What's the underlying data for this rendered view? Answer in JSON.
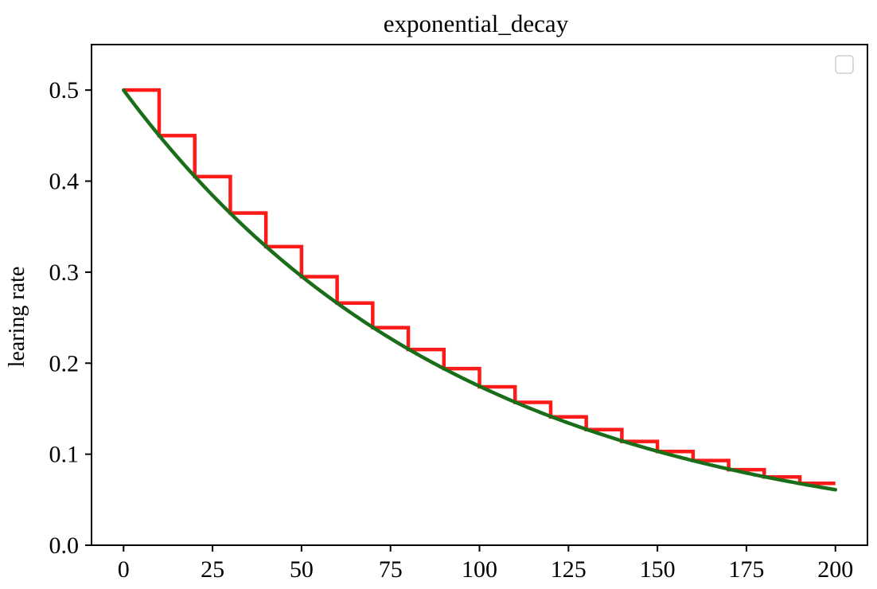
{
  "chart_data": {
    "type": "line",
    "title": "exponential_decay",
    "xlabel": "",
    "ylabel": "learing rate",
    "xlim": [
      -9,
      209
    ],
    "ylim": [
      0,
      0.5
    ],
    "x_ticks": [
      0,
      25,
      50,
      75,
      100,
      125,
      150,
      175,
      200
    ],
    "x_tick_labels": [
      "0",
      "25",
      "50",
      "75",
      "100",
      "125",
      "150",
      "175",
      "200"
    ],
    "y_ticks": [
      0,
      0.1,
      0.2,
      0.3,
      0.4,
      0.5
    ],
    "y_tick_labels": [
      "0.0",
      "0.1",
      "0.2",
      "0.3",
      "0.4",
      "0.5"
    ],
    "grid": false,
    "legend": {
      "placement": "top-right",
      "entries": []
    },
    "series": [
      {
        "style": "step",
        "color": "#ff1a1a",
        "x": [
          0,
          10,
          20,
          30,
          40,
          50,
          60,
          70,
          80,
          90,
          100,
          110,
          120,
          130,
          140,
          150,
          160,
          170,
          180,
          190,
          200
        ],
        "values": [
          0.5,
          0.45,
          0.405,
          0.365,
          0.328,
          0.295,
          0.266,
          0.239,
          0.215,
          0.194,
          0.174,
          0.157,
          0.141,
          0.127,
          0.114,
          0.103,
          0.093,
          0.083,
          0.075,
          0.068,
          0.068
        ]
      },
      {
        "style": "smooth",
        "color": "#1a6e1a",
        "x": [
          0,
          10,
          20,
          30,
          40,
          50,
          60,
          70,
          80,
          90,
          100,
          110,
          120,
          130,
          140,
          150,
          160,
          170,
          180,
          190,
          200
        ],
        "values": [
          0.5,
          0.45,
          0.405,
          0.365,
          0.328,
          0.295,
          0.266,
          0.239,
          0.215,
          0.194,
          0.174,
          0.157,
          0.141,
          0.127,
          0.114,
          0.103,
          0.093,
          0.083,
          0.075,
          0.068,
          0.061
        ]
      }
    ]
  }
}
